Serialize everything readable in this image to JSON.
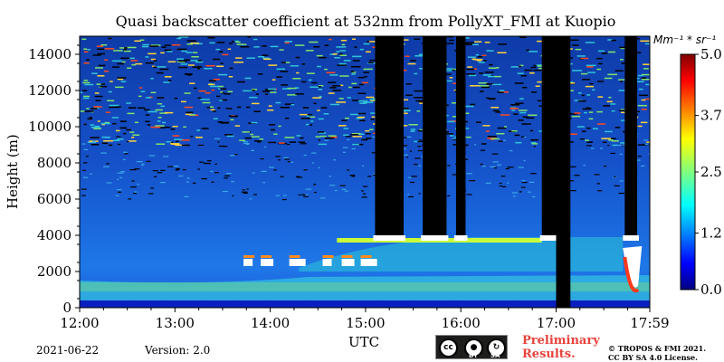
{
  "chart_data": {
    "type": "heatmap",
    "title": "Quasi backscatter coefficient at 532nm from PollyXT_FMI at Kuopio",
    "xlabel": "UTC",
    "ylabel": "Height (m)",
    "x_ticks": [
      "12:00",
      "13:00",
      "14:00",
      "15:00",
      "16:00",
      "17:00",
      "17:59"
    ],
    "x_tick_hours": [
      12.0,
      13.0,
      14.0,
      15.0,
      16.0,
      17.0,
      17.983
    ],
    "xlim_hours": [
      12.0,
      17.983
    ],
    "y_ticks": [
      0,
      2000,
      4000,
      6000,
      8000,
      10000,
      12000,
      14000
    ],
    "ylim": [
      0,
      15000
    ],
    "colorbar": {
      "unit": "Mm⁻¹ * sr⁻¹",
      "ticks": [
        "0.0",
        "1.2",
        "2.5",
        "3.7",
        "5.0"
      ],
      "range": [
        0,
        5.0
      ],
      "colormap": "jet"
    },
    "features": {
      "boundary_layer_top_m": 1500,
      "elevated_aerosol_layer_m": [
        2000,
        4000
      ],
      "low_cloud_patches": {
        "hours": [
          13.7,
          15.05
        ],
        "height_m": 2300
      },
      "cloud_base_m": 3700,
      "signal_gaps_hours": [
        [
          15.1,
          15.4
        ],
        [
          15.6,
          15.85
        ],
        [
          15.95,
          16.05
        ],
        [
          16.85,
          17.0
        ],
        [
          17.72,
          17.85
        ]
      ],
      "instrument_off_hours": [
        17.0,
        17.15
      ],
      "low_cloud_end_m": 700
    }
  },
  "footer": {
    "date": "2021-06-22",
    "version": "Version: 2.0",
    "preliminary": [
      "Preliminary",
      "Results."
    ],
    "copyright": [
      "© TROPOS & FMI 2021.",
      "CC BY SA 4.0 License."
    ],
    "license_badge": {
      "cc": "cc",
      "by": "BY",
      "sa": "SA"
    }
  },
  "colors": {
    "no_signal": "#000000",
    "cloud": "#ffffff"
  }
}
